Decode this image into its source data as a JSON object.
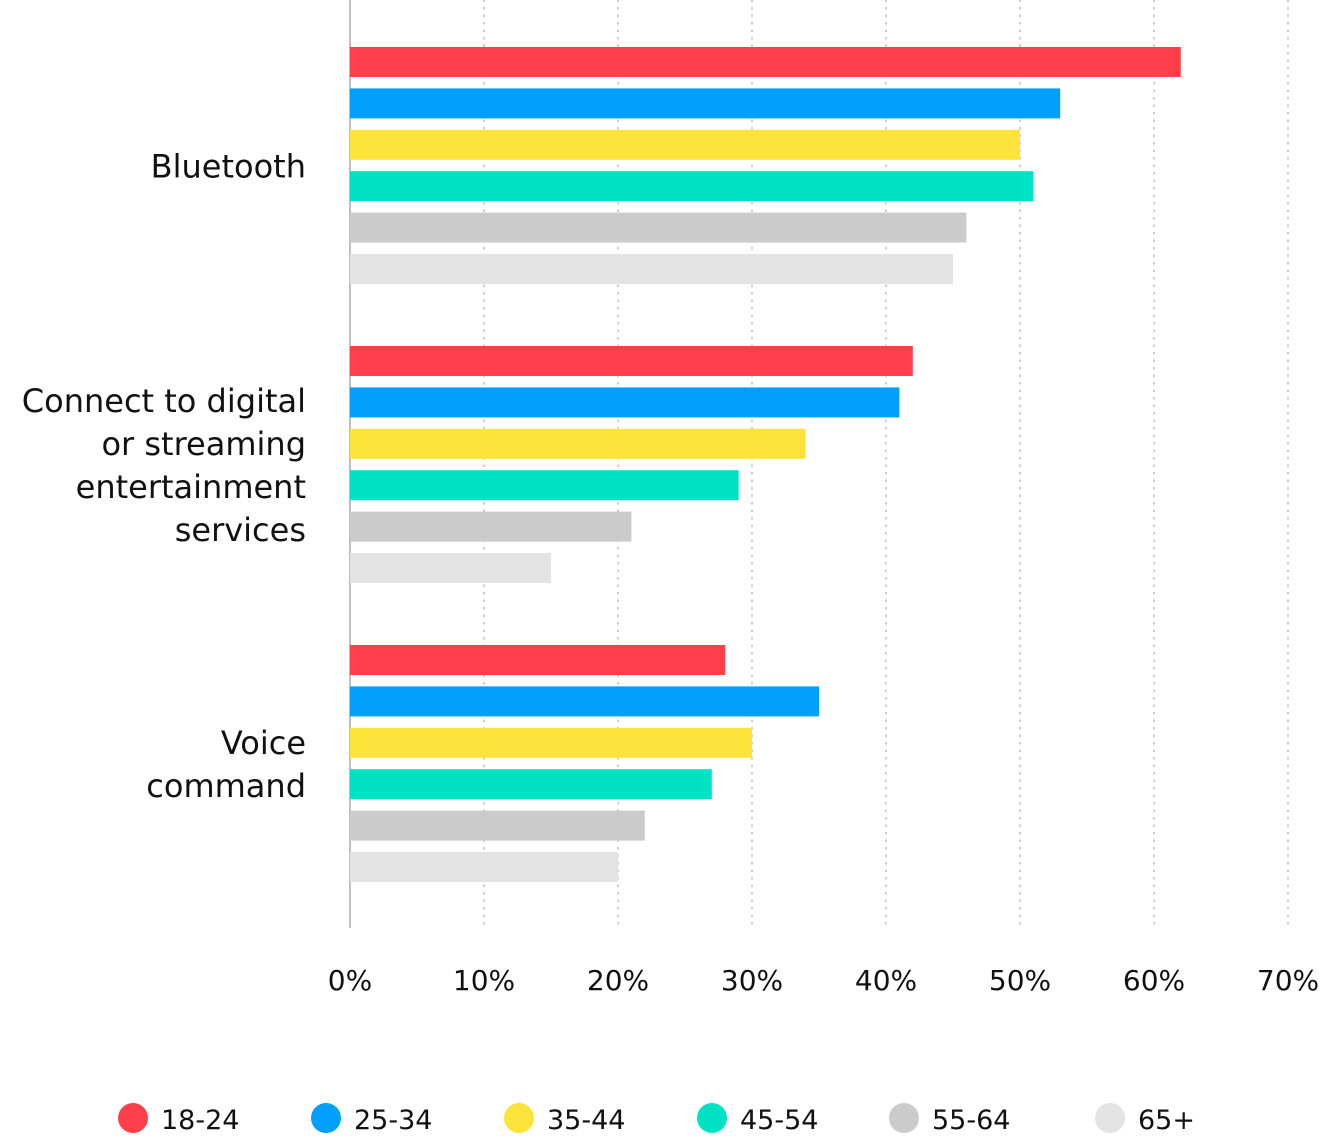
{
  "chart_data": {
    "type": "bar",
    "orientation": "horizontal",
    "title": "",
    "xlabel": "",
    "ylabel": "",
    "categories": [
      [
        "Bluetooth"
      ],
      [
        "Connect to digital",
        "or streaming",
        "entertainment",
        "services"
      ],
      [
        "Voice",
        "command"
      ]
    ],
    "series": [
      {
        "name": "18-24",
        "color": "#ff3f4a",
        "values": [
          62,
          42,
          28
        ]
      },
      {
        "name": "25-34",
        "color": "#009ffc",
        "values": [
          53,
          41,
          35
        ]
      },
      {
        "name": "35-44",
        "color": "#fde33a",
        "values": [
          50,
          34,
          30
        ]
      },
      {
        "name": "45-54",
        "color": "#00e2c4",
        "values": [
          51,
          29,
          27
        ]
      },
      {
        "name": "55-64",
        "color": "#cbcbcb",
        "values": [
          46,
          21,
          22
        ]
      },
      {
        "name": "65+",
        "color": "#e3e3e3",
        "values": [
          45,
          15,
          20
        ]
      }
    ],
    "xlim": [
      0,
      70
    ],
    "xticks": [
      0,
      10,
      20,
      30,
      40,
      50,
      60,
      70
    ],
    "xtick_labels": [
      "0%",
      "10%",
      "20%",
      "30%",
      "40%",
      "50%",
      "60%",
      "70%"
    ],
    "grid": "vertical dotted",
    "legend": "bottom"
  }
}
